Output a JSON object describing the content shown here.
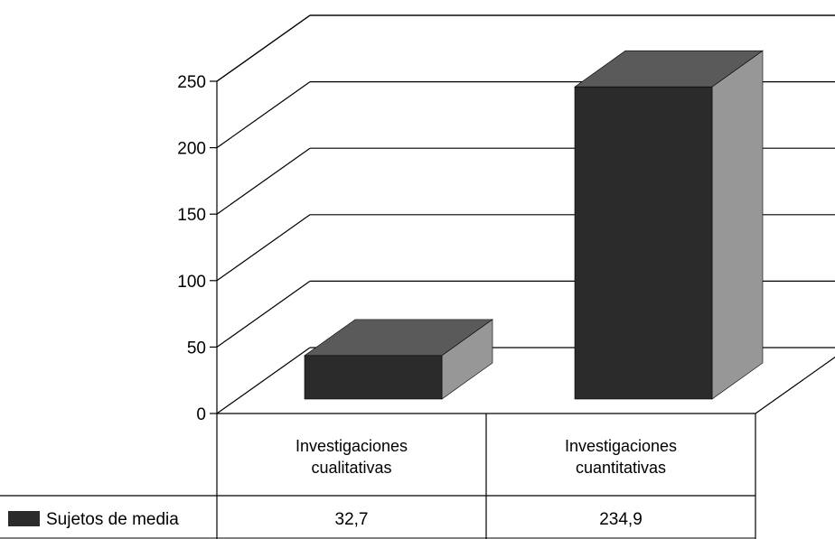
{
  "chart_data": {
    "type": "bar",
    "categories": [
      [
        "Investigaciones",
        "cualitativas"
      ],
      [
        "Investigaciones",
        "cuantitativas"
      ]
    ],
    "series": [
      {
        "name": "Sujetos de media",
        "values": [
          32.7,
          234.9
        ],
        "value_labels": [
          "32,7",
          "234,9"
        ]
      }
    ],
    "ylim": [
      0,
      250
    ],
    "yticks": [
      "0",
      "50",
      "100",
      "150",
      "200",
      "250"
    ],
    "grid": true,
    "legend": "data-table-left",
    "colors": {
      "front": "#2b2b2b",
      "top": "#5a5a5a",
      "side": "#979797"
    }
  }
}
